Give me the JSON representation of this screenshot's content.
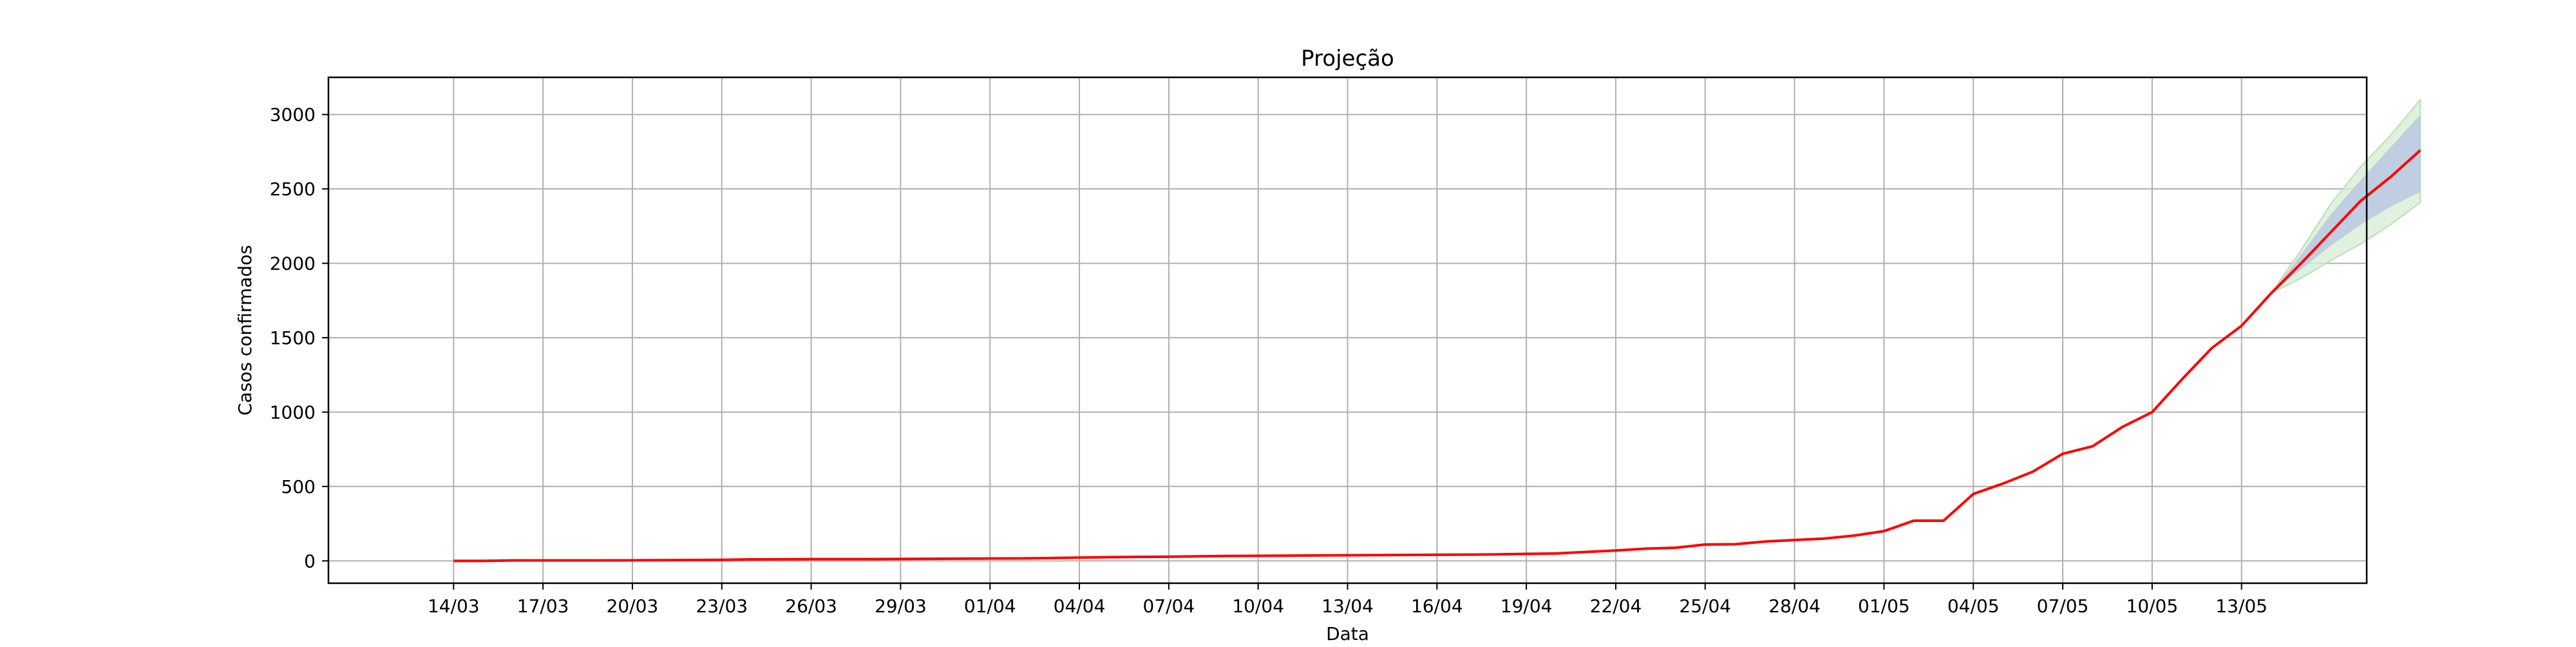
{
  "chart_data": {
    "type": "line",
    "title": "Projeção",
    "xlabel": "Data",
    "ylabel": "Casos confirmados",
    "grid": true,
    "x_start": "2020-03-14",
    "xlim_days": [
      -4.2,
      64.2
    ],
    "ylim": [
      -150,
      3250
    ],
    "y_ticks": [
      0,
      500,
      1000,
      1500,
      2000,
      2500,
      3000
    ],
    "x_tick_labels": [
      "14/03",
      "17/03",
      "20/03",
      "23/03",
      "26/03",
      "29/03",
      "01/04",
      "04/04",
      "07/04",
      "10/04",
      "13/04",
      "16/04",
      "19/04",
      "22/04",
      "25/04",
      "28/04",
      "01/05",
      "04/05",
      "07/05",
      "10/05",
      "13/05"
    ],
    "colors": {
      "line": "#ff0000",
      "inner_band": "#b8c8e0",
      "outer_band": "#d5ecd3",
      "grid": "#b0b0b0",
      "axes": "#000000"
    },
    "series": [
      {
        "values": [
          0,
          0,
          3,
          3,
          3,
          3,
          4,
          5,
          6,
          7,
          10,
          11,
          12,
          12,
          12,
          13,
          14,
          15,
          16,
          17,
          19,
          22,
          25,
          27,
          28,
          31,
          33,
          34,
          35,
          37,
          38,
          39,
          40,
          41,
          42,
          44,
          47,
          50,
          60,
          70,
          82,
          88,
          110,
          112,
          130,
          140,
          150,
          170,
          200,
          270,
          270,
          450,
          520,
          600,
          720,
          770,
          900,
          1000,
          1220,
          1430,
          1580,
          1800,
          2000,
          2210,
          2420,
          2580,
          2760
        ]
      }
    ],
    "projection": {
      "start_index": 61,
      "inner_upper": [
        1800,
        2060,
        2330,
        2560,
        2780,
        3000
      ],
      "inner_lower": [
        1800,
        1960,
        2120,
        2260,
        2380,
        2480
      ],
      "outer_upper": [
        1800,
        2090,
        2400,
        2650,
        2860,
        3100
      ],
      "outer_lower": [
        1800,
        1900,
        2020,
        2130,
        2260,
        2410
      ]
    }
  }
}
